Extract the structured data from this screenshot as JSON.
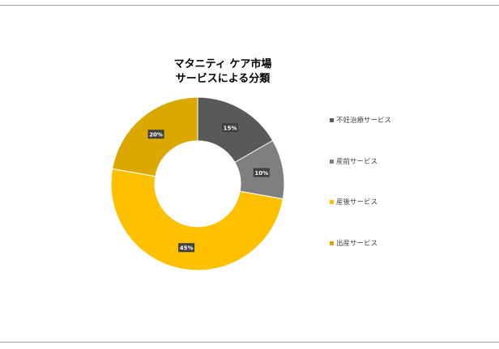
{
  "chart_data": {
    "type": "donut",
    "title_lines": [
      "マタニティ ケア市場",
      "サービスによる分類"
    ],
    "categories": [
      "不妊治療サービス",
      "産前サービス",
      "産後サービス",
      "出産サービス"
    ],
    "values": [
      15,
      10,
      45,
      20
    ],
    "data_labels": [
      "15%",
      "10%",
      "45%",
      "20%"
    ],
    "colors": [
      "#595959",
      "#7f7f7f",
      "#ffc000",
      "#dba800"
    ],
    "legend_position": "right"
  }
}
